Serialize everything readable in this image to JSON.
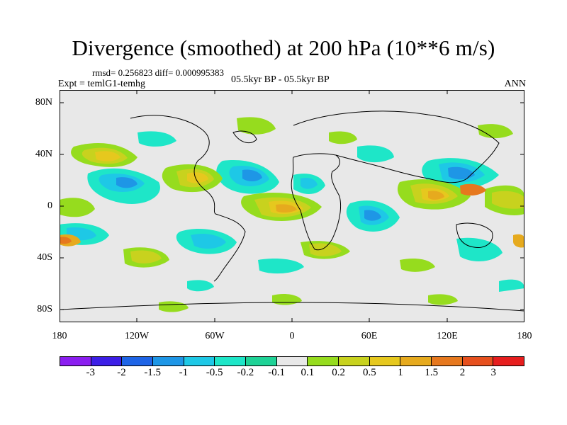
{
  "figure": {
    "title": "Divergence (smoothed) at 200 hPa (10**6 m/s)",
    "stats": "rmsd= 0.256823 diff= 0.000995383",
    "experiment": "Expt = temlG1-temhg",
    "period": "05.5kyr BP - 05.5kyr BP",
    "season": "ANN"
  },
  "axes": {
    "lat_labels": [
      "80N",
      "40N",
      "0",
      "40S",
      "80S"
    ],
    "lon_labels": [
      "180",
      "120W",
      "60W",
      "0",
      "60E",
      "120E",
      "180"
    ]
  },
  "colorbar": {
    "colors": [
      "#8b1ef0",
      "#3c1ee6",
      "#1e64e6",
      "#1e96e6",
      "#1ec8e6",
      "#1ee6c8",
      "#1ed296",
      "#e8e8e8",
      "#96dc1e",
      "#c8d21e",
      "#e6c81e",
      "#e6aa1e",
      "#e6781e",
      "#e6501e",
      "#e61e1e"
    ],
    "labels": [
      "-3",
      "-2",
      "-1.5",
      "-1",
      "-0.5",
      "-0.2",
      "-0.1",
      "0.1",
      "0.2",
      "0.5",
      "1",
      "1.5",
      "2",
      "3"
    ]
  }
}
